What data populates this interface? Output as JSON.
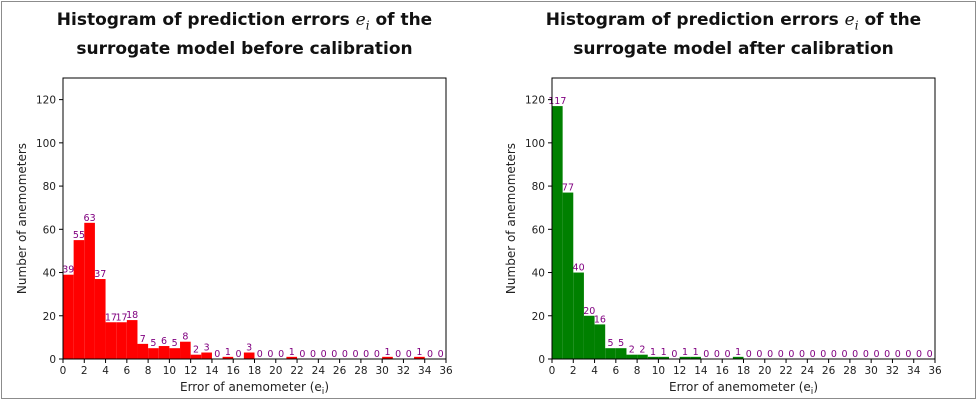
{
  "chart_data": [
    {
      "type": "bar",
      "title_line1_pre": "Histogram of prediction errors ",
      "title_symbol": "e",
      "title_subscript": "i",
      "title_line1_post": " of the",
      "title_line2": "surrogate model before calibration",
      "xlabel": "Error of anemometer (e",
      "xlabel_subscript": "i",
      "xlabel_close": ")",
      "ylabel": "Number of anemometers",
      "bin_width": 1,
      "x_range": [
        0,
        36
      ],
      "y_range": [
        0,
        130
      ],
      "x_ticks": [
        0,
        2,
        4,
        6,
        8,
        10,
        12,
        14,
        16,
        18,
        20,
        22,
        24,
        26,
        28,
        30,
        32,
        34,
        36
      ],
      "y_ticks": [
        0,
        20,
        40,
        60,
        80,
        100,
        120
      ],
      "bar_color": "#ff0000",
      "label_color": "#800080",
      "bin_starts": [
        0,
        1,
        2,
        3,
        4,
        5,
        6,
        7,
        8,
        9,
        10,
        11,
        12,
        13,
        14,
        15,
        16,
        17,
        18,
        19,
        20,
        21,
        22,
        23,
        24,
        25,
        26,
        27,
        28,
        29,
        30,
        31,
        32,
        33,
        34,
        35
      ],
      "values": [
        39,
        55,
        63,
        37,
        17,
        17,
        18,
        7,
        5,
        6,
        5,
        8,
        2,
        3,
        0,
        1,
        0,
        3,
        0,
        0,
        0,
        1,
        0,
        0,
        0,
        0,
        0,
        0,
        0,
        0,
        1,
        0,
        0,
        1,
        0,
        0
      ]
    },
    {
      "type": "bar",
      "title_line1_pre": "Histogram of prediction errors ",
      "title_symbol": "e",
      "title_subscript": "i",
      "title_line1_post": " of the",
      "title_line2": "surrogate model after calibration",
      "xlabel": "Error of anemometer (e",
      "xlabel_subscript": "i",
      "xlabel_close": ")",
      "ylabel": "Number of anemometers",
      "bin_width": 1,
      "x_range": [
        0,
        36
      ],
      "y_range": [
        0,
        130
      ],
      "x_ticks": [
        0,
        2,
        4,
        6,
        8,
        10,
        12,
        14,
        16,
        18,
        20,
        22,
        24,
        26,
        28,
        30,
        32,
        34,
        36
      ],
      "y_ticks": [
        0,
        20,
        40,
        60,
        80,
        100,
        120
      ],
      "bar_color": "#008000",
      "label_color": "#800080",
      "bin_starts": [
        0,
        1,
        2,
        3,
        4,
        5,
        6,
        7,
        8,
        9,
        10,
        11,
        12,
        13,
        14,
        15,
        16,
        17,
        18,
        19,
        20,
        21,
        22,
        23,
        24,
        25,
        26,
        27,
        28,
        29,
        30,
        31,
        32,
        33,
        34,
        35
      ],
      "values": [
        117,
        77,
        40,
        20,
        16,
        5,
        5,
        2,
        2,
        1,
        1,
        0,
        1,
        1,
        0,
        0,
        0,
        1,
        0,
        0,
        0,
        0,
        0,
        0,
        0,
        0,
        0,
        0,
        0,
        0,
        0,
        0,
        0,
        0,
        0,
        0
      ]
    }
  ]
}
